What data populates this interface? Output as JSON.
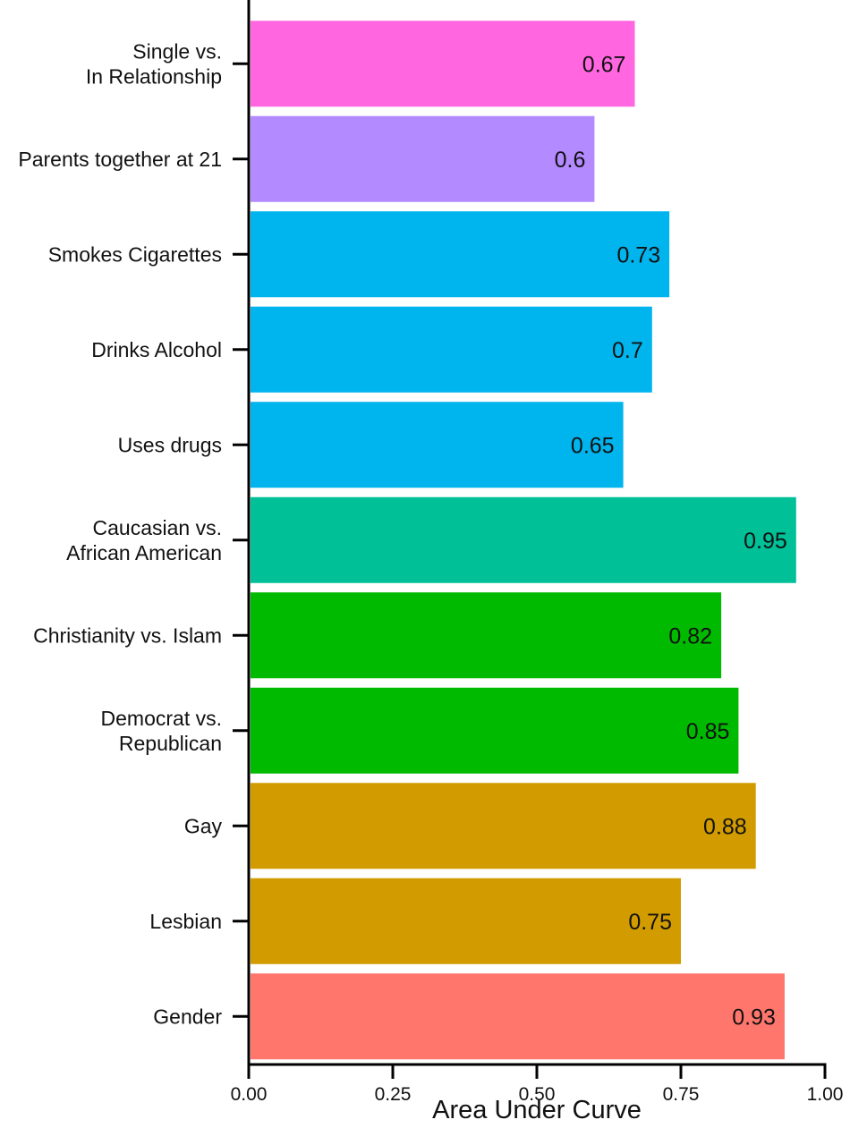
{
  "chart_data": {
    "type": "bar",
    "orientation": "horizontal",
    "title": "",
    "xlabel": "Area Under Curve",
    "ylabel": "",
    "xlim": [
      0,
      1
    ],
    "x_ticks": [
      "0.00",
      "0.25",
      "0.50",
      "0.75",
      "1.00"
    ],
    "x_tick_values": [
      0,
      0.25,
      0.5,
      0.75,
      1
    ],
    "grid": false,
    "categories": [
      [
        "Single vs.",
        "In Relationship"
      ],
      [
        "Parents together at 21"
      ],
      [
        "Smokes Cigarettes"
      ],
      [
        "Drinks Alcohol"
      ],
      [
        "Uses drugs"
      ],
      [
        "Caucasian vs.",
        "African American"
      ],
      [
        "Christianity vs. Islam"
      ],
      [
        "Democrat vs.",
        "Republican"
      ],
      [
        "Gay"
      ],
      [
        "Lesbian"
      ],
      [
        "Gender"
      ]
    ],
    "values": [
      0.67,
      0.6,
      0.73,
      0.7,
      0.65,
      0.95,
      0.82,
      0.85,
      0.88,
      0.75,
      0.93
    ],
    "value_labels": [
      "0.67",
      "0.6",
      "0.73",
      "0.7",
      "0.65",
      "0.95",
      "0.82",
      "0.85",
      "0.88",
      "0.75",
      "0.93"
    ],
    "colors": [
      "#ff66e0",
      "#b38aff",
      "#00b4ed",
      "#00b4ed",
      "#00b4ed",
      "#00c097",
      "#00ba00",
      "#00ba00",
      "#d29c00",
      "#d29c00",
      "#ff766d"
    ]
  }
}
